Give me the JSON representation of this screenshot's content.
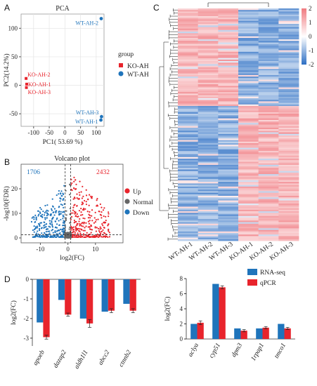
{
  "panels": {
    "a": "A",
    "b": "B",
    "c": "C",
    "d": "D"
  },
  "colors": {
    "ko": "#e8242c",
    "wt": "#1f74bb",
    "up": "#e8242c",
    "normal": "#666666",
    "down": "#1f74bb",
    "rnaseq": "#1f74bb",
    "qpcr": "#e8242c",
    "heat_high": "#f07a80",
    "heat_low": "#2d6fc4",
    "heat_mid": "#ffffff"
  },
  "chart_data": [
    {
      "id": "pca",
      "type": "scatter",
      "title": "PCA",
      "xlabel": "PC1( 53.69 %)",
      "ylabel": "PC2(14.2%)",
      "xlim": [
        -140,
        125
      ],
      "ylim": [
        -72,
        125
      ],
      "xticks": [
        -100,
        -50,
        0,
        50,
        100
      ],
      "yticks": [
        -50,
        0,
        50,
        100
      ],
      "legend_title": "group",
      "series": [
        {
          "name": "KO-AH",
          "color": "#e8242c",
          "marker": "square",
          "points": [
            {
              "label": "KO-AH-2",
              "x": -124,
              "y": 12
            },
            {
              "label": "KO-AH-1",
              "x": -122,
              "y": 2
            },
            {
              "label": "KO-AH-3",
              "x": -123,
              "y": -4
            }
          ]
        },
        {
          "name": "WT-AH",
          "color": "#1f74bb",
          "marker": "circle",
          "points": [
            {
              "label": "WT-AH-2",
              "x": 116,
              "y": 117
            },
            {
              "label": "WT-AH-3",
              "x": 117,
              "y": -55
            },
            {
              "label": "WT-AH-1",
              "x": 115,
              "y": -61
            }
          ]
        }
      ]
    },
    {
      "id": "volcano",
      "type": "scatter",
      "title": "Volcano plot",
      "xlabel": "log2(FC)",
      "ylabel": "-log10(FDR)",
      "xlim": [
        -17,
        20
      ],
      "ylim": [
        -2,
        30
      ],
      "xticks": [
        -10,
        0,
        10
      ],
      "yticks": [
        0,
        10,
        20
      ],
      "counts": {
        "down": "1706",
        "up": "2432"
      },
      "legend": [
        "Up",
        "Normal",
        "Down"
      ]
    },
    {
      "id": "heatmap",
      "type": "heatmap",
      "columns": [
        "WT-AH-1",
        "WT-AH-2",
        "WT-AH-3",
        "KO-AH-1",
        "KO-AH-2",
        "KO-AH-3"
      ],
      "scale": {
        "min": -2,
        "max": 2,
        "ticks": [
          2,
          1,
          0,
          -1,
          -2
        ]
      }
    },
    {
      "id": "qpcr_down",
      "type": "bar",
      "ylabel": "log2(FC)",
      "ylim": [
        -3.4,
        0
      ],
      "yticks": [
        0,
        -1,
        -2,
        -3
      ],
      "categories": [
        "apoeb",
        "dazap2",
        "aldh1l1",
        "abcc2",
        "ctnnb2"
      ],
      "series": [
        {
          "name": "RNA-seq",
          "values": [
            -2.2,
            -1.05,
            -2.0,
            -1.65,
            -1.25
          ],
          "errors": [
            0,
            0,
            0,
            0,
            0
          ]
        },
        {
          "name": "qPCR",
          "values": [
            -2.95,
            -1.8,
            -2.25,
            -1.6,
            -1.6
          ],
          "errors": [
            0.1,
            0.08,
            0.2,
            0.1,
            0.1
          ]
        }
      ]
    },
    {
      "id": "qpcr_up",
      "type": "bar",
      "ylabel": "log2(FC)",
      "ylim": [
        0,
        8
      ],
      "yticks": [
        0,
        2,
        4,
        6,
        8
      ],
      "categories": [
        "aclya",
        "cyp51",
        "dpm3",
        "1rpap1",
        "tmco1"
      ],
      "legend": [
        "RNA-seq",
        "qPCR"
      ],
      "series": [
        {
          "name": "RNA-seq",
          "values": [
            2.0,
            7.3,
            1.4,
            1.4,
            2.0
          ],
          "errors": [
            0,
            0,
            0,
            0,
            0
          ]
        },
        {
          "name": "qPCR",
          "values": [
            2.15,
            6.85,
            1.1,
            1.5,
            1.4
          ],
          "errors": [
            0.25,
            0.2,
            0.15,
            0.15,
            0.15
          ]
        }
      ]
    }
  ]
}
